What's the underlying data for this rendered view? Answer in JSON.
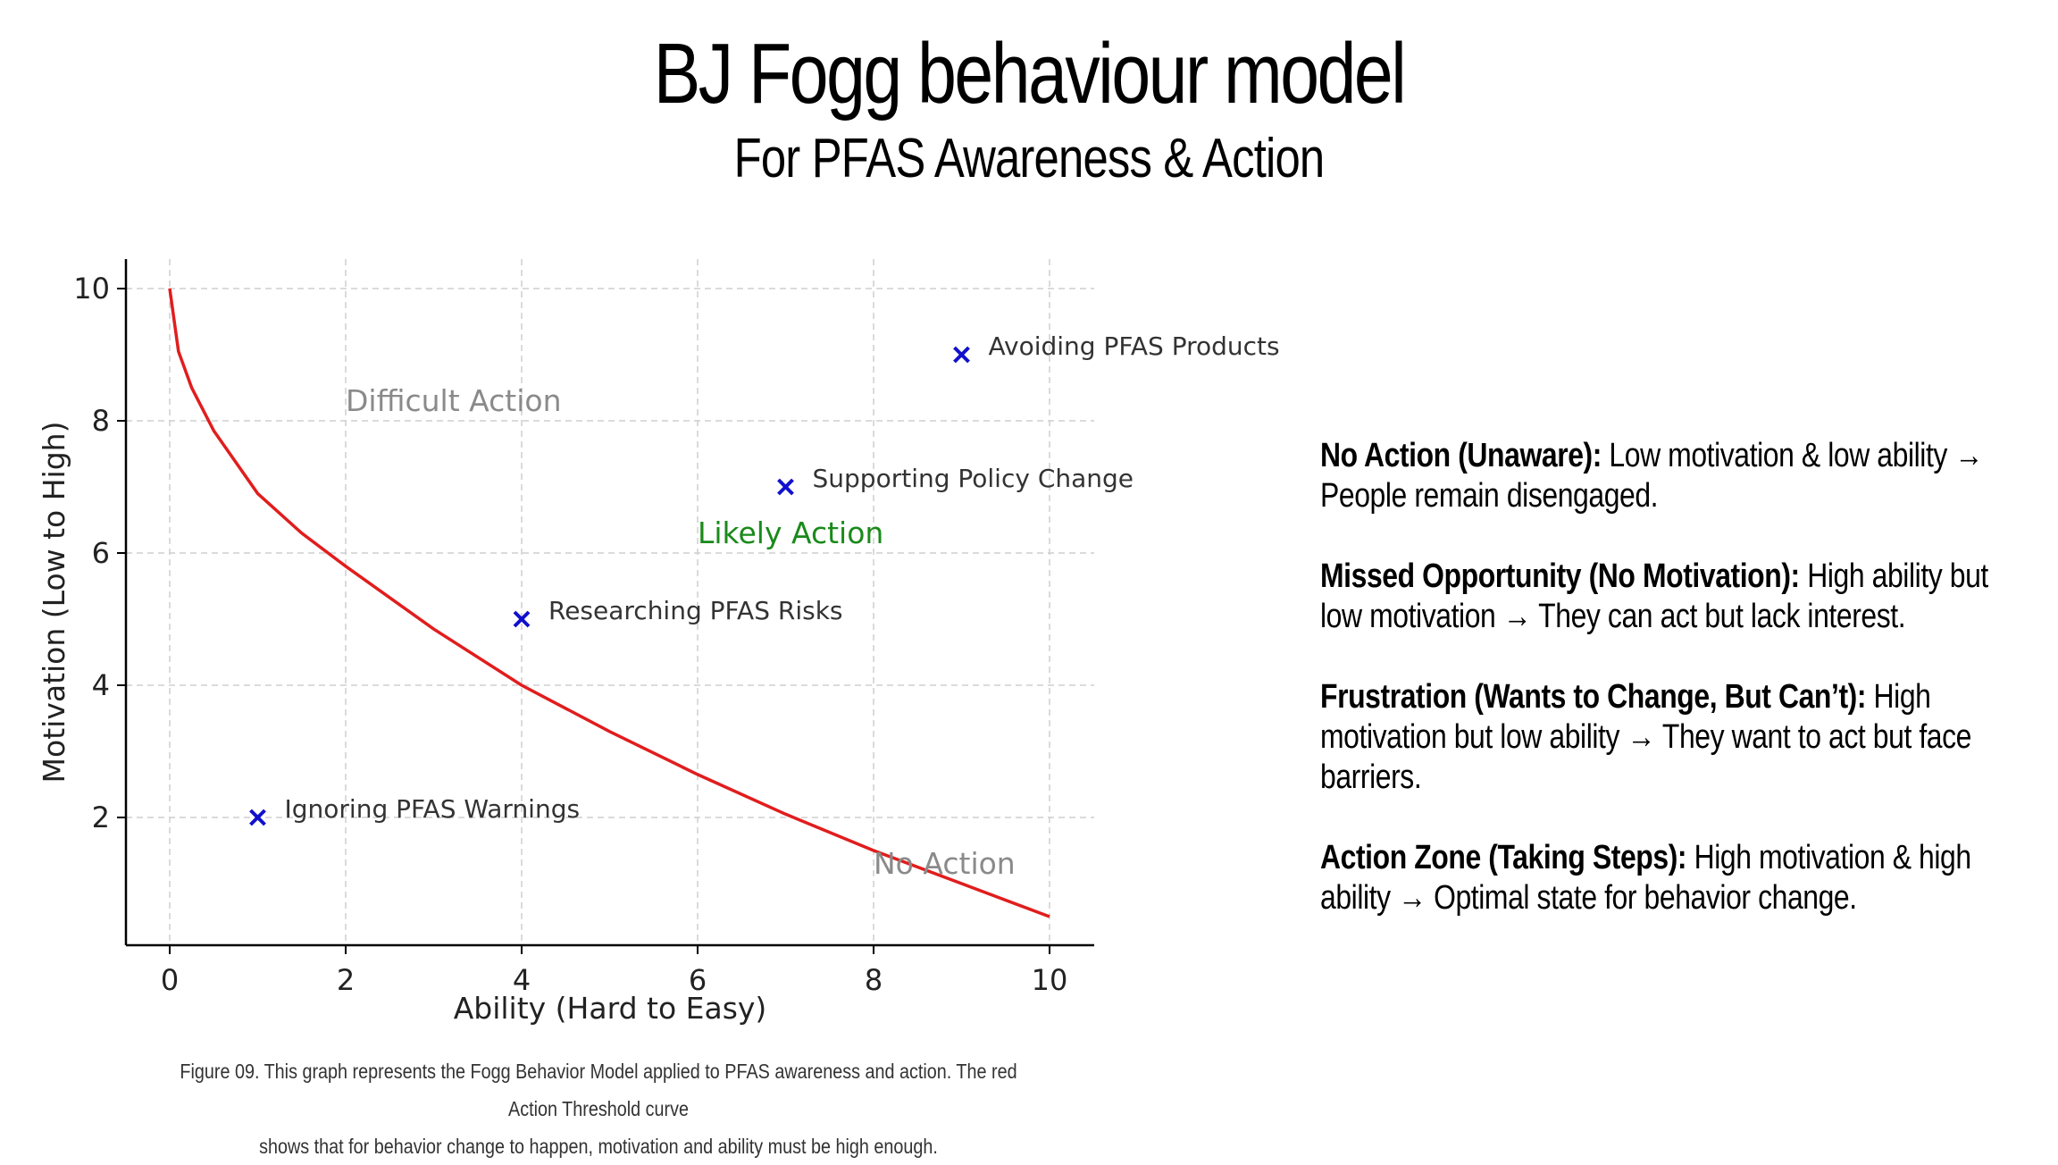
{
  "header": {
    "title": "BJ Fogg behaviour model",
    "subtitle": "For PFAS Awareness & Action"
  },
  "chart_data": {
    "type": "scatter",
    "xlabel": "Ability (Hard to Easy)",
    "ylabel": "Motivation (Low to High)",
    "xlim": [
      -0.5,
      10.5
    ],
    "ylim": [
      0,
      10.5
    ],
    "xticks": [
      0,
      2,
      4,
      6,
      8,
      10
    ],
    "yticks": [
      2,
      4,
      6,
      8,
      10
    ],
    "grid": true,
    "threshold_curve": {
      "color": "#e11d1d",
      "x": [
        0,
        0.1,
        0.25,
        0.5,
        1,
        1.5,
        2,
        3,
        4,
        5,
        6,
        7,
        8,
        9,
        10
      ],
      "y": [
        10,
        9.05,
        8.5,
        7.85,
        6.9,
        6.3,
        5.8,
        4.85,
        4.0,
        3.3,
        2.65,
        2.05,
        1.5,
        1.0,
        0.5
      ]
    },
    "points": [
      {
        "x": 1,
        "y": 2,
        "label": "Ignoring PFAS Warnings"
      },
      {
        "x": 4,
        "y": 5,
        "label": "Researching PFAS Risks"
      },
      {
        "x": 7,
        "y": 7,
        "label": "Supporting Policy Change"
      },
      {
        "x": 9,
        "y": 9,
        "label": "Avoiding PFAS Products"
      }
    ],
    "point_color": "#1010cc",
    "annotations": [
      {
        "text": "Difficult Action",
        "x": 2,
        "y": 8.15,
        "color": "#8a8a8a"
      },
      {
        "text": "Likely Action",
        "x": 6,
        "y": 6.15,
        "color": "#1a8a1a"
      },
      {
        "text": "No Action",
        "x": 8,
        "y": 1.15,
        "color": "#8a8a8a"
      }
    ]
  },
  "caption": {
    "line1": "Figure 09. This graph represents the Fogg Behavior Model applied to PFAS awareness and action. The red Action Threshold curve",
    "line2": "shows that for behavior change to happen, motivation and ability must be high enough."
  },
  "legend": {
    "items": [
      {
        "head": "No Action (Unaware):",
        "body": "Low motivation & low ability → People remain disengaged."
      },
      {
        "head": "Missed Opportunity (No Motivation):",
        "body": "High ability but low motivation → They can act but lack interest."
      },
      {
        "head": "Frustration (Wants to Change, But Can’t):",
        "body": "High motivation but low ability → They want to act but face barriers."
      },
      {
        "head": "Action Zone (Taking Steps):",
        "body": "High motivation & high ability → Optimal state for behavior change."
      }
    ]
  }
}
